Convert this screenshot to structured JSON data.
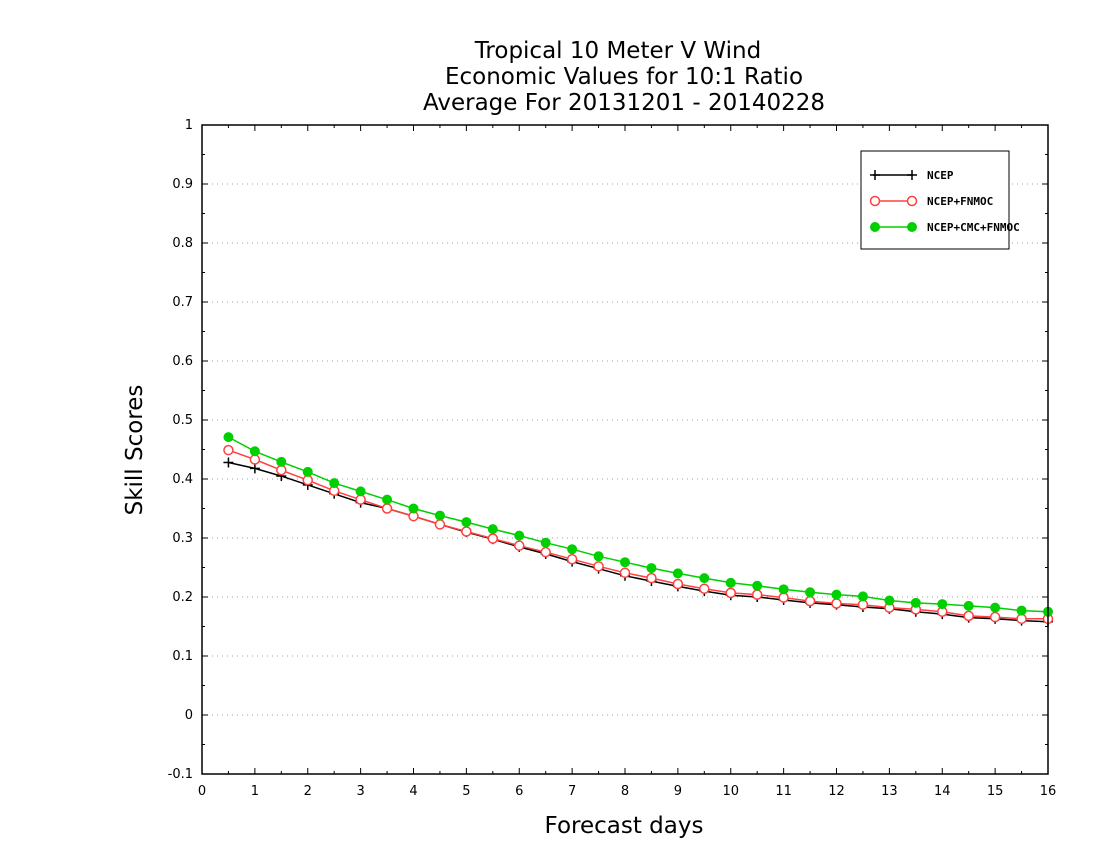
{
  "chart_data": {
    "type": "line",
    "title": [
      "Tropical 10 Meter V Wind",
      "Economic Values for 10:1 Ratio",
      "Average For 20131201 - 20140228"
    ],
    "xlabel": "Forecast days",
    "ylabel": "Skill Scores",
    "xlim": [
      0,
      16
    ],
    "ylim": [
      -0.1,
      1
    ],
    "xticks": [
      0,
      1,
      2,
      3,
      4,
      5,
      6,
      7,
      8,
      9,
      10,
      11,
      12,
      13,
      14,
      15,
      16
    ],
    "xtick_labels": [
      "0",
      "1",
      "2",
      "3",
      "4",
      "5",
      "6",
      "7",
      "8",
      "9",
      "10",
      "11",
      "12",
      "13",
      "14",
      "15",
      "16"
    ],
    "yticks": [
      -0.1,
      0,
      0.1,
      0.2,
      0.3,
      0.4,
      0.5,
      0.6,
      0.7,
      0.8,
      0.9,
      1
    ],
    "ytick_labels": [
      "-0.1",
      "0",
      "0.1",
      "0.2",
      "0.3",
      "0.4",
      "0.5",
      "0.6",
      "0.7",
      "0.8",
      "0.9",
      "1"
    ],
    "grid": "horizontal dotted",
    "legend_position": "top-right",
    "x": [
      0.5,
      1.0,
      1.5,
      2.0,
      2.5,
      3.0,
      3.5,
      4.0,
      4.5,
      5.0,
      5.5,
      6.0,
      6.5,
      7.0,
      7.5,
      8.0,
      8.5,
      9.0,
      9.5,
      10.0,
      10.5,
      11.0,
      11.5,
      12.0,
      12.5,
      13.0,
      13.5,
      14.0,
      14.5,
      15.0,
      15.5,
      16.0
    ],
    "series": [
      {
        "name": "NCEP",
        "color": "#000000",
        "marker": "plus",
        "values": [
          0.428,
          0.418,
          0.405,
          0.39,
          0.375,
          0.36,
          0.35,
          0.337,
          0.323,
          0.31,
          0.298,
          0.285,
          0.273,
          0.26,
          0.248,
          0.236,
          0.227,
          0.218,
          0.21,
          0.203,
          0.2,
          0.195,
          0.19,
          0.187,
          0.183,
          0.18,
          0.175,
          0.171,
          0.165,
          0.163,
          0.16,
          0.158
        ]
      },
      {
        "name": "NCEP+FNMOC",
        "color": "#ff4040",
        "marker": "open-circle",
        "values": [
          0.449,
          0.433,
          0.415,
          0.398,
          0.38,
          0.365,
          0.35,
          0.337,
          0.323,
          0.311,
          0.299,
          0.287,
          0.276,
          0.264,
          0.252,
          0.241,
          0.232,
          0.222,
          0.214,
          0.207,
          0.204,
          0.199,
          0.193,
          0.189,
          0.187,
          0.182,
          0.179,
          0.175,
          0.168,
          0.166,
          0.163,
          0.163
        ]
      },
      {
        "name": "NCEP+CMC+FNMOC",
        "color": "#00d000",
        "marker": "filled-circle",
        "values": [
          0.471,
          0.447,
          0.429,
          0.412,
          0.393,
          0.379,
          0.365,
          0.35,
          0.338,
          0.327,
          0.315,
          0.304,
          0.292,
          0.281,
          0.269,
          0.259,
          0.249,
          0.24,
          0.232,
          0.224,
          0.219,
          0.213,
          0.208,
          0.204,
          0.201,
          0.194,
          0.19,
          0.188,
          0.185,
          0.182,
          0.177,
          0.175
        ]
      }
    ]
  }
}
